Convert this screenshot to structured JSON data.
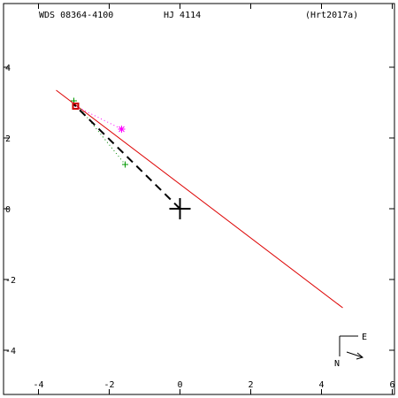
{
  "header": {
    "wds_id": "WDS 08364-4100",
    "discoverer": "HJ 4114",
    "reference": "(Hrt2017a)"
  },
  "compass": {
    "east_label": "E",
    "north_label": "N"
  },
  "colors": {
    "axes": "#000000",
    "orbit_line": "#dd0000",
    "position_line": "#000000",
    "green_marker": "#009900",
    "magenta_marker": "#ff00ff",
    "red_marker": "#cc0000",
    "dotted_green": "#008800",
    "dotted_magenta": "#ff00ff"
  },
  "chart_data": {
    "type": "scatter",
    "title": "",
    "xlabel": "",
    "ylabel": "",
    "xlim": [
      -5,
      6
    ],
    "ylim": [
      -5.3,
      5.8
    ],
    "x_ticks": [
      -4,
      -2,
      0,
      2,
      4,
      6
    ],
    "x_tick_labels": [
      "-4",
      "-2",
      "0",
      "2",
      "4",
      "6"
    ],
    "y_ticks": [
      4,
      2,
      0,
      -2,
      -4
    ],
    "y_tick_labels": [
      "4",
      "2",
      "0",
      "-2",
      "-4"
    ],
    "primary": {
      "x": 0,
      "y": 0
    },
    "line_of_nodes": {
      "x": [
        -3.5,
        4.6
      ],
      "y": [
        3.35,
        -2.8
      ]
    },
    "position_line": {
      "x": [
        0,
        -3.0
      ],
      "y": [
        0,
        2.95
      ]
    },
    "green_point": {
      "x": -1.55,
      "y": 1.25
    },
    "magenta_point": {
      "x": -1.65,
      "y": 2.25
    },
    "green_early_point": {
      "x": -3.0,
      "y": 3.05
    },
    "red_point": {
      "x": -2.95,
      "y": 2.9
    }
  }
}
